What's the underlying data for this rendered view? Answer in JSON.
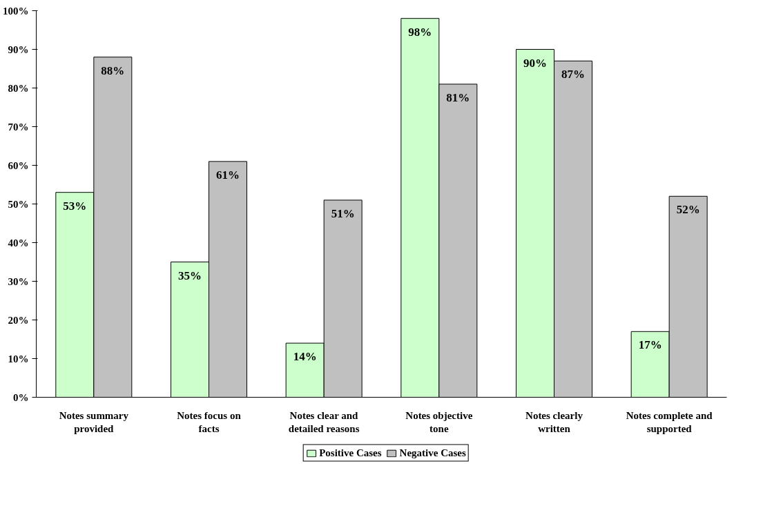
{
  "chart_data": {
    "type": "bar",
    "categories": [
      "Notes summary provided",
      "Notes focus on facts",
      "Notes clear and detailed reasons",
      "Notes objective tone",
      "Notes clearly written",
      "Notes complete and supported"
    ],
    "series": [
      {
        "name": "Positive Cases",
        "color": "#ccffcc",
        "values": [
          53,
          35,
          14,
          98,
          90,
          17
        ],
        "value_labels": [
          "53%",
          "35%",
          "14%",
          "98%",
          "90%",
          "17%"
        ]
      },
      {
        "name": "Negative Cases",
        "color": "#c0c0c0",
        "values": [
          88,
          61,
          51,
          81,
          87,
          52
        ],
        "value_labels": [
          "88%",
          "61%",
          "51%",
          "81%",
          "87%",
          "52%"
        ]
      }
    ],
    "ylim": [
      0,
      100
    ],
    "yticks": [
      {
        "value": 0,
        "label": "0%"
      },
      {
        "value": 10,
        "label": "10%"
      },
      {
        "value": 20,
        "label": "20%"
      },
      {
        "value": 30,
        "label": "30%"
      },
      {
        "value": 40,
        "label": "40%"
      },
      {
        "value": 50,
        "label": "50%"
      },
      {
        "value": 60,
        "label": "60%"
      },
      {
        "value": 70,
        "label": "70%"
      },
      {
        "value": 80,
        "label": "80%"
      },
      {
        "value": 90,
        "label": "90%"
      },
      {
        "value": 100,
        "label": "100%"
      }
    ],
    "grid": false,
    "legend": "bottom"
  }
}
